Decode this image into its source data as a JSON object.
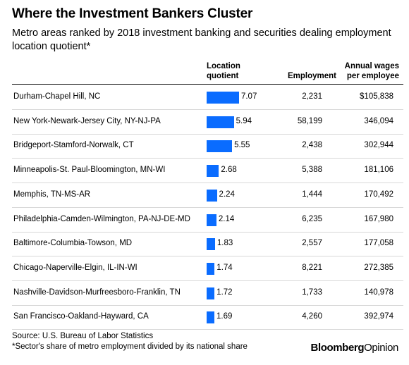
{
  "title": "Where the Investment Bankers Cluster",
  "subtitle": "Metro areas ranked by 2018 investment banking and securities dealing employment location quotient*",
  "columns": {
    "lq_line1": "Location",
    "lq_line2": "quotient",
    "employment": "Employment",
    "wages_line1": "Annual wages",
    "wages_line2": "per employee"
  },
  "chart_data": {
    "type": "table",
    "bar_color": "#0a6cff",
    "rows": [
      {
        "metro": "Durham-Chapel Hill, NC",
        "location_quotient": 7.07,
        "location_quotient_label": "7.07",
        "employment": "2,231",
        "annual_wages": "$105,838"
      },
      {
        "metro": "New York-Newark-Jersey City, NY-NJ-PA",
        "location_quotient": 5.94,
        "location_quotient_label": "5.94",
        "employment": "58,199",
        "annual_wages": "346,094"
      },
      {
        "metro": "Bridgeport-Stamford-Norwalk, CT",
        "location_quotient": 5.55,
        "location_quotient_label": "5.55",
        "employment": "2,438",
        "annual_wages": "302,944"
      },
      {
        "metro": "Minneapolis-St. Paul-Bloomington, MN-WI",
        "location_quotient": 2.68,
        "location_quotient_label": "2.68",
        "employment": "5,388",
        "annual_wages": "181,106"
      },
      {
        "metro": "Memphis, TN-MS-AR",
        "location_quotient": 2.24,
        "location_quotient_label": "2.24",
        "employment": "1,444",
        "annual_wages": "170,492"
      },
      {
        "metro": "Philadelphia-Camden-Wilmington, PA-NJ-DE-MD",
        "location_quotient": 2.14,
        "location_quotient_label": "2.14",
        "employment": "6,235",
        "annual_wages": "167,980"
      },
      {
        "metro": "Baltimore-Columbia-Towson, MD",
        "location_quotient": 1.83,
        "location_quotient_label": "1.83",
        "employment": "2,557",
        "annual_wages": "177,058"
      },
      {
        "metro": "Chicago-Naperville-Elgin, IL-IN-WI",
        "location_quotient": 1.74,
        "location_quotient_label": "1.74",
        "employment": "8,221",
        "annual_wages": "272,385"
      },
      {
        "metro": "Nashville-Davidson-Murfreesboro-Franklin, TN",
        "location_quotient": 1.72,
        "location_quotient_label": "1.72",
        "employment": "1,733",
        "annual_wages": "140,978"
      },
      {
        "metro": "San Francisco-Oakland-Hayward, CA",
        "location_quotient": 1.69,
        "location_quotient_label": "1.69",
        "employment": "4,260",
        "annual_wages": "392,974"
      }
    ]
  },
  "footer": {
    "source": "Source: U.S. Bureau of Labor Statistics",
    "note": "*Sector's share of metro employment divided by its national share",
    "logo_bold": "Bloomberg",
    "logo_light": "Opinion"
  }
}
